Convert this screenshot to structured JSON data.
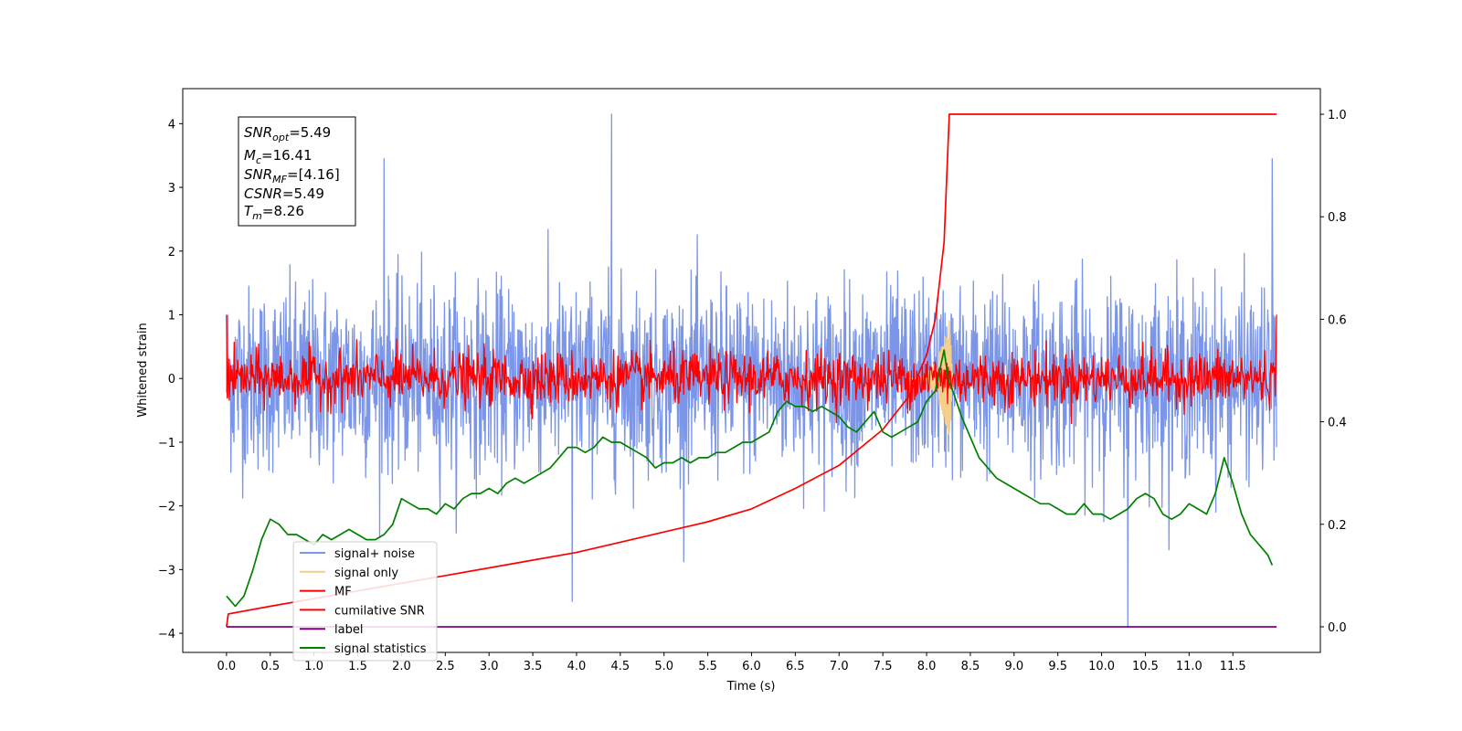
{
  "chart_data": {
    "type": "line",
    "title": "",
    "xlabel": "Time (s)",
    "ylabel": "Whitened strain",
    "ylabel_right": "",
    "xlim": [
      -0.5,
      12.5
    ],
    "ylim": [
      -4.3,
      4.55
    ],
    "ylim_right": [
      -0.05,
      1.05
    ],
    "x_ticks": [
      0.0,
      0.5,
      1.0,
      1.5,
      2.0,
      2.5,
      3.0,
      3.5,
      4.0,
      4.5,
      5.0,
      5.5,
      6.0,
      6.5,
      7.0,
      7.5,
      8.0,
      8.5,
      9.0,
      9.5,
      10.0,
      10.5,
      11.0,
      11.5
    ],
    "x_tick_labels": [
      "0.0",
      "0.5",
      "1.0",
      "1.5",
      "2.0",
      "2.5",
      "3.0",
      "3.5",
      "4.0",
      "4.5",
      "5.0",
      "5.5",
      "6.0",
      "6.5",
      "7.0",
      "7.5",
      "8.0",
      "8.5",
      "9.0",
      "9.5",
      "10.0",
      "10.5",
      "11.0",
      "11.5"
    ],
    "y_ticks": [
      -4,
      -3,
      -2,
      -1,
      0,
      1,
      2,
      3,
      4
    ],
    "y_tick_labels": [
      "−4",
      "−3",
      "−2",
      "−1",
      "0",
      "1",
      "2",
      "3",
      "4"
    ],
    "y_right_ticks": [
      0.0,
      0.2,
      0.4,
      0.6,
      0.8,
      1.0
    ],
    "y_right_tick_labels": [
      "0.0",
      "0.2",
      "0.4",
      "0.6",
      "0.8",
      "1.0"
    ],
    "grid": false,
    "legend": {
      "placement": "lower-left",
      "entries": [
        {
          "name": "signal+ noise",
          "color": "#7b96e8"
        },
        {
          "name": "signal only",
          "color": "#f5d08c"
        },
        {
          "name": "MF",
          "color": "#ff0000"
        },
        {
          "name": "cumilative SNR",
          "color": "#ff0000"
        },
        {
          "name": "label",
          "color": "#800080"
        },
        {
          "name": "signal statistics",
          "color": "#008000"
        }
      ]
    },
    "info_box": {
      "snr_opt": "5.49",
      "mc": "16.41",
      "snr_mf": "[4.16]",
      "csnr": "5.49",
      "tm": "8.26"
    },
    "series": [
      {
        "name": "signal+ noise",
        "axis": "left",
        "color": "#7b96e8",
        "style": "noise",
        "x_range": [
          0.0,
          12.0
        ],
        "mean": 0.0,
        "core_amplitude": 1.3,
        "extreme_values": [
          {
            "x": 4.4,
            "y": 4.15
          },
          {
            "x": 10.3,
            "y": -3.9
          },
          {
            "x": 1.8,
            "y": 3.45
          },
          {
            "x": 3.95,
            "y": -3.5
          },
          {
            "x": 11.95,
            "y": 3.45
          }
        ]
      },
      {
        "name": "signal only",
        "axis": "left",
        "color": "#f5d08c",
        "style": "chirp",
        "x_range": [
          7.8,
          8.3
        ],
        "peak_x": 8.26,
        "peak_amplitude": 0.95
      },
      {
        "name": "MF",
        "axis": "left",
        "color": "#ff0000",
        "style": "noise",
        "x_range": [
          0.0,
          12.0
        ],
        "mean": 0.0,
        "core_amplitude": 0.38,
        "start_value": 1.0,
        "end_value": 1.0
      },
      {
        "name": "cumilative SNR",
        "axis": "right",
        "color": "#ff0000",
        "x": [
          0.0,
          0.02,
          0.5,
          1.0,
          1.5,
          2.0,
          2.5,
          3.0,
          3.5,
          4.0,
          4.5,
          5.0,
          5.5,
          6.0,
          6.5,
          7.0,
          7.5,
          7.8,
          8.0,
          8.1,
          8.2,
          8.26,
          8.5,
          9.0,
          10.0,
          11.0,
          12.0
        ],
        "y": [
          0.0,
          0.025,
          0.04,
          0.055,
          0.07,
          0.085,
          0.1,
          0.115,
          0.13,
          0.145,
          0.165,
          0.185,
          0.205,
          0.23,
          0.27,
          0.315,
          0.385,
          0.45,
          0.53,
          0.6,
          0.75,
          1.0,
          1.0,
          1.0,
          1.0,
          1.0,
          1.0
        ]
      },
      {
        "name": "label",
        "axis": "right",
        "color": "#800080",
        "x": [
          0.0,
          12.0
        ],
        "y": [
          0.0,
          0.0
        ]
      },
      {
        "name": "signal statistics",
        "axis": "right",
        "color": "#008000",
        "x": [
          0.0,
          0.1,
          0.2,
          0.3,
          0.4,
          0.5,
          0.6,
          0.7,
          0.8,
          0.9,
          1.0,
          1.1,
          1.2,
          1.3,
          1.4,
          1.5,
          1.6,
          1.7,
          1.8,
          1.9,
          2.0,
          2.1,
          2.2,
          2.3,
          2.4,
          2.5,
          2.6,
          2.7,
          2.8,
          2.9,
          3.0,
          3.1,
          3.2,
          3.3,
          3.4,
          3.5,
          3.6,
          3.7,
          3.8,
          3.9,
          4.0,
          4.1,
          4.2,
          4.3,
          4.4,
          4.5,
          4.6,
          4.7,
          4.8,
          4.9,
          5.0,
          5.1,
          5.2,
          5.3,
          5.4,
          5.5,
          5.6,
          5.7,
          5.8,
          5.9,
          6.0,
          6.1,
          6.2,
          6.3,
          6.4,
          6.5,
          6.6,
          6.7,
          6.8,
          6.9,
          7.0,
          7.1,
          7.2,
          7.3,
          7.4,
          7.5,
          7.6,
          7.7,
          7.8,
          7.9,
          8.0,
          8.1,
          8.15,
          8.2,
          8.25,
          8.3,
          8.4,
          8.5,
          8.6,
          8.7,
          8.8,
          8.9,
          9.0,
          9.1,
          9.2,
          9.3,
          9.4,
          9.5,
          9.6,
          9.7,
          9.8,
          9.9,
          10.0,
          10.1,
          10.2,
          10.3,
          10.4,
          10.5,
          10.6,
          10.7,
          10.8,
          10.9,
          11.0,
          11.1,
          11.2,
          11.3,
          11.4,
          11.5,
          11.6,
          11.7,
          11.8,
          11.9,
          11.95
        ],
        "y": [
          0.06,
          0.04,
          0.06,
          0.11,
          0.17,
          0.21,
          0.2,
          0.18,
          0.18,
          0.17,
          0.16,
          0.18,
          0.17,
          0.18,
          0.19,
          0.18,
          0.17,
          0.17,
          0.18,
          0.2,
          0.25,
          0.24,
          0.23,
          0.23,
          0.22,
          0.24,
          0.23,
          0.25,
          0.26,
          0.26,
          0.27,
          0.26,
          0.28,
          0.29,
          0.28,
          0.29,
          0.3,
          0.31,
          0.33,
          0.35,
          0.35,
          0.34,
          0.35,
          0.37,
          0.36,
          0.36,
          0.35,
          0.34,
          0.33,
          0.31,
          0.32,
          0.32,
          0.33,
          0.32,
          0.33,
          0.33,
          0.34,
          0.34,
          0.35,
          0.36,
          0.36,
          0.37,
          0.38,
          0.42,
          0.44,
          0.43,
          0.43,
          0.42,
          0.43,
          0.42,
          0.41,
          0.39,
          0.38,
          0.4,
          0.42,
          0.38,
          0.37,
          0.38,
          0.39,
          0.4,
          0.44,
          0.46,
          0.5,
          0.54,
          0.48,
          0.46,
          0.41,
          0.37,
          0.33,
          0.31,
          0.29,
          0.28,
          0.27,
          0.26,
          0.25,
          0.24,
          0.24,
          0.23,
          0.22,
          0.22,
          0.24,
          0.22,
          0.22,
          0.21,
          0.22,
          0.23,
          0.25,
          0.26,
          0.25,
          0.22,
          0.21,
          0.22,
          0.24,
          0.23,
          0.22,
          0.26,
          0.33,
          0.28,
          0.22,
          0.18,
          0.16,
          0.14,
          0.12
        ]
      }
    ]
  }
}
